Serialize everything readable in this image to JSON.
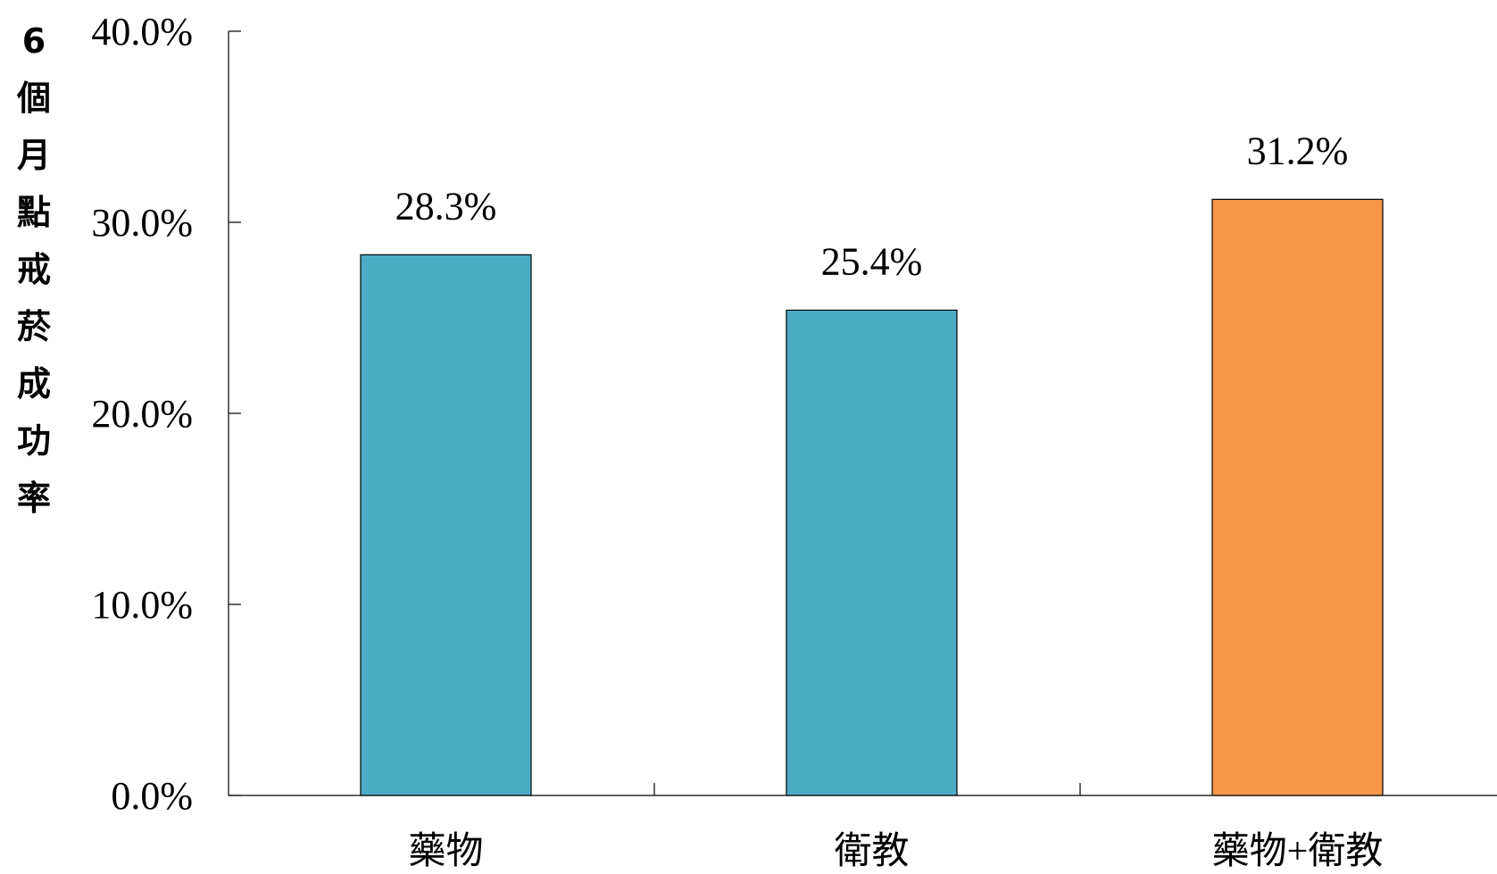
{
  "chart_data": {
    "type": "bar",
    "title": "",
    "xlabel": "",
    "ylabel": "6個月點戒菸成功率",
    "ylim": [
      0,
      40
    ],
    "yticks": [
      "0.0%",
      "10.0%",
      "20.0%",
      "30.0%",
      "40.0%"
    ],
    "ytick_values": [
      0,
      10,
      20,
      30,
      40
    ],
    "categories": [
      "藥物",
      "衛教",
      "藥物+衛教"
    ],
    "values": [
      28.3,
      25.4,
      31.2
    ],
    "data_labels": [
      "28.3%",
      "25.4%",
      "31.2%"
    ],
    "colors": [
      "#4bacc6",
      "#4bacc6",
      "#f79646"
    ],
    "grid": false,
    "legend": "none"
  }
}
